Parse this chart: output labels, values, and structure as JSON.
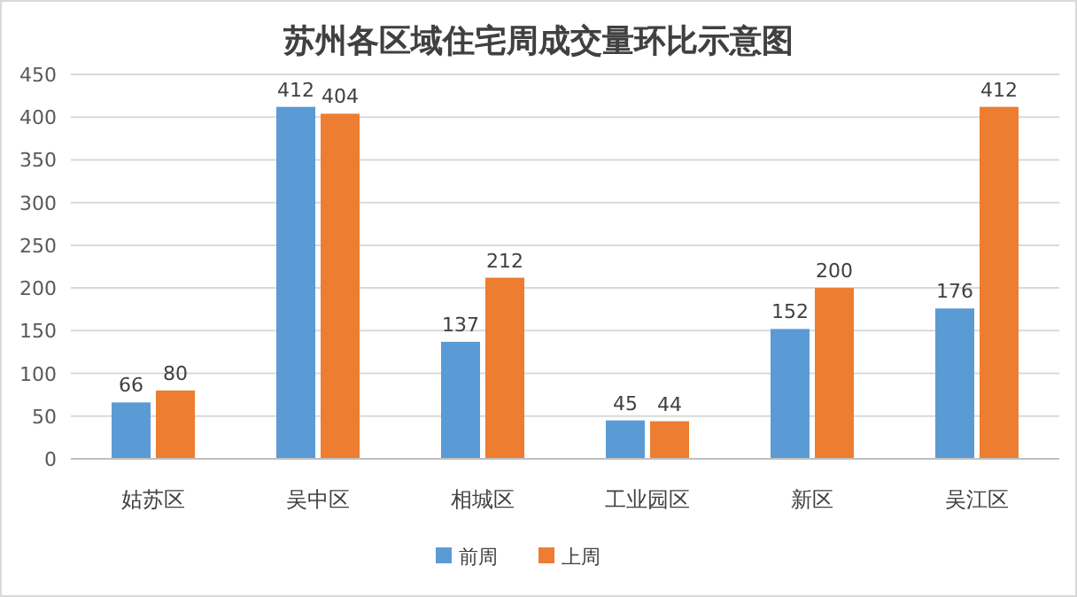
{
  "chart_data": {
    "type": "bar",
    "title": "苏州各区域住宅周成交量环比示意图",
    "categories": [
      "姑苏区",
      "吴中区",
      "相城区",
      "工业园区",
      "新区",
      "吴江区"
    ],
    "series": [
      {
        "name": "前周",
        "color": "#5b9bd5",
        "values": [
          66,
          412,
          137,
          45,
          152,
          176
        ]
      },
      {
        "name": "上周",
        "color": "#ed7d31",
        "values": [
          80,
          404,
          212,
          44,
          200,
          412
        ]
      }
    ],
    "ylim": [
      0,
      450
    ],
    "yticks": [
      0,
      50,
      100,
      150,
      200,
      250,
      300,
      350,
      400,
      450
    ],
    "grid": "y",
    "legend": "bottom",
    "data_labels": true
  }
}
